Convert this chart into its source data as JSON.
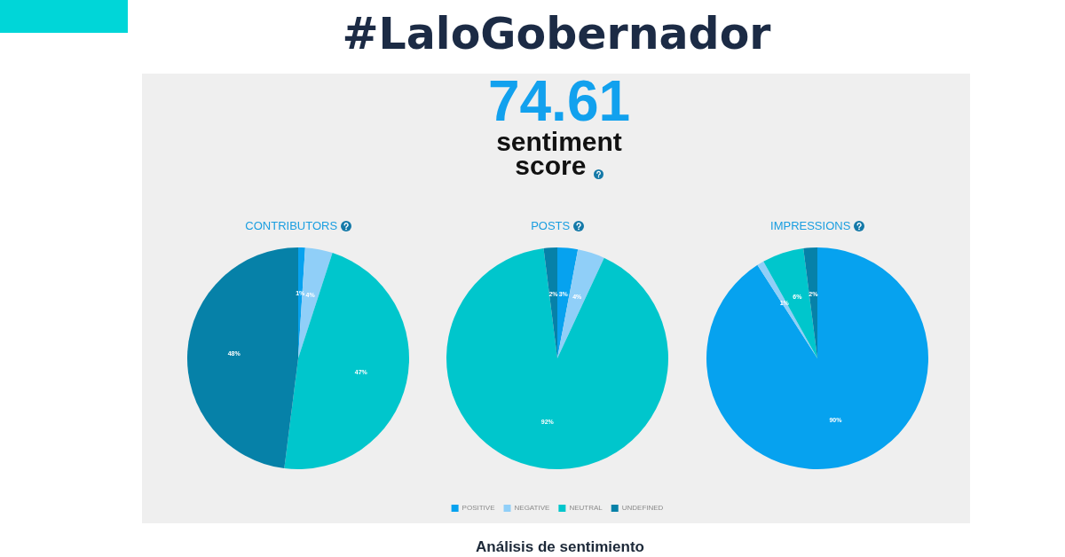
{
  "chart_data": [
    {
      "type": "other",
      "title": "#LaloGobernador",
      "annotations": [
        "74.61",
        "sentiment score",
        "Análisis de sentimiento"
      ]
    },
    {
      "type": "pie",
      "title": "CONTRIBUTORS",
      "categories": [
        null,
        null,
        null,
        null
      ],
      "values": [
        1,
        4,
        47,
        48
      ],
      "colors": [
        "#06a2ef",
        "#90cff8",
        "#00c6cc",
        "#0681a8"
      ],
      "value_labels": [
        "1%",
        "4%",
        "47%",
        "48%"
      ]
    },
    {
      "type": "pie",
      "title": "POSTS",
      "categories": [
        "POSITIVE",
        "NEGATIVE",
        "NEUTRAL",
        "UNDEFINED"
      ],
      "values": [
        3,
        4,
        92,
        2
      ],
      "colors": [
        "#06a2ef",
        "#90cff8",
        "#00c6cc",
        "#0681a8"
      ],
      "value_labels": [
        "3%",
        "4%",
        "92%",
        "2%"
      ],
      "legend": "bottom"
    },
    {
      "type": "pie",
      "title": "IMPRESSIONS",
      "categories": [
        null,
        null,
        null,
        null
      ],
      "values": [
        90,
        1,
        6,
        2
      ],
      "colors": [
        "#06a2ef",
        "#90cff8",
        "#00c6cc",
        "#0681a8"
      ],
      "value_labels": [
        "90%",
        "1%",
        "6%",
        "2%"
      ]
    }
  ]
}
